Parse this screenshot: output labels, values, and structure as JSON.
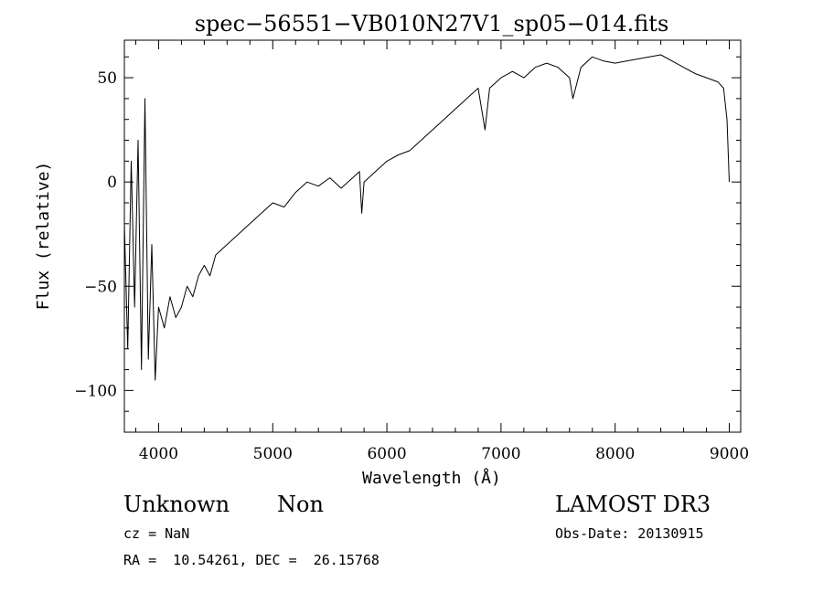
{
  "chart_data": {
    "type": "line",
    "title": "spec−56551−VB010N27V1_sp05−014.fits",
    "xlabel": "Wavelength (Å)",
    "ylabel": "Flux (relative)",
    "xlim": [
      3700,
      9100
    ],
    "ylim": [
      -120,
      68
    ],
    "x_ticks": [
      4000,
      5000,
      6000,
      7000,
      8000,
      9000
    ],
    "x_tick_labels": [
      "4000",
      "5000",
      "6000",
      "7000",
      "8000",
      "9000"
    ],
    "y_ticks": [
      -100,
      -50,
      0,
      50
    ],
    "y_tick_labels": [
      "−100",
      "−50",
      "0",
      "50"
    ],
    "grid": false,
    "series": [
      {
        "name": "flux",
        "x": [
          3700,
          3730,
          3760,
          3790,
          3820,
          3850,
          3880,
          3910,
          3940,
          3970,
          4000,
          4050,
          4100,
          4150,
          4200,
          4250,
          4300,
          4350,
          4400,
          4450,
          4500,
          4600,
          4700,
          4800,
          4900,
          5000,
          5100,
          5200,
          5300,
          5400,
          5500,
          5600,
          5700,
          5760,
          5780,
          5800,
          5900,
          6000,
          6100,
          6200,
          6300,
          6400,
          6500,
          6600,
          6700,
          6800,
          6860,
          6900,
          7000,
          7100,
          7200,
          7300,
          7400,
          7500,
          7600,
          7630,
          7700,
          7800,
          7900,
          8000,
          8100,
          8200,
          8300,
          8400,
          8500,
          8600,
          8700,
          8800,
          8900,
          8950,
          8980,
          9000
        ],
        "y": [
          -20,
          -80,
          10,
          -60,
          20,
          -90,
          40,
          -85,
          -30,
          -95,
          -60,
          -70,
          -55,
          -65,
          -60,
          -50,
          -55,
          -45,
          -40,
          -45,
          -35,
          -30,
          -25,
          -20,
          -15,
          -10,
          -12,
          -5,
          0,
          -2,
          2,
          -3,
          2,
          5,
          -15,
          0,
          5,
          10,
          13,
          15,
          20,
          25,
          30,
          35,
          40,
          45,
          25,
          45,
          50,
          53,
          50,
          55,
          57,
          55,
          50,
          40,
          55,
          60,
          58,
          57,
          58,
          59,
          60,
          61,
          58,
          55,
          52,
          50,
          48,
          45,
          30,
          0
        ]
      }
    ]
  },
  "info": {
    "class_label": "Unknown",
    "subclass_label": "Non",
    "survey": "LAMOST DR3",
    "redshift": "cz = NaN",
    "obs_date": "Obs-Date: 20130915",
    "coords": "RA =  10.54261, DEC =  26.15768"
  }
}
